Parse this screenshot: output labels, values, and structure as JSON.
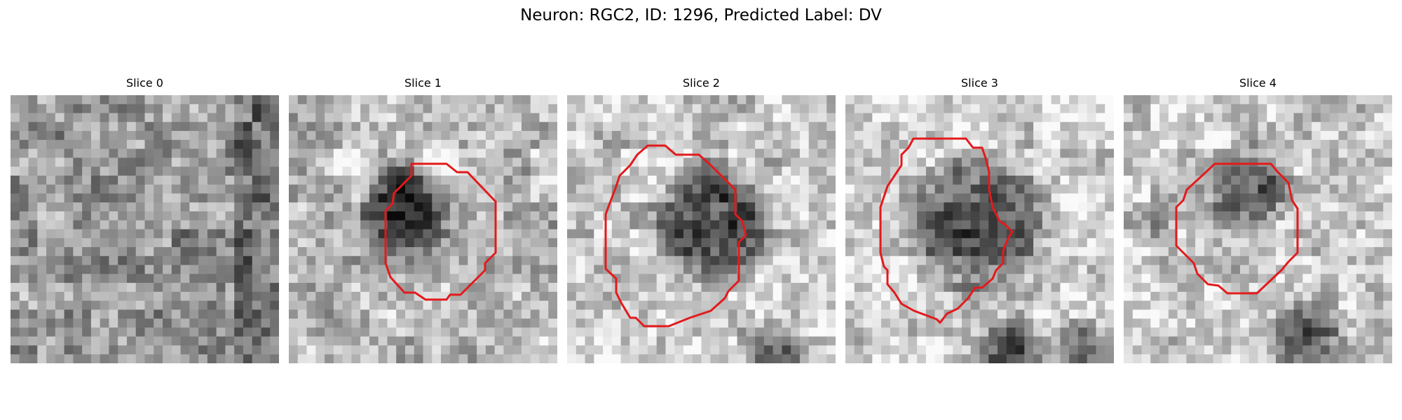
{
  "figure": {
    "title": "Neuron: RGC2, ID: 1296, Predicted Label: DV",
    "contour_color": "#e31a1c",
    "colormap": "gray"
  },
  "panels": [
    {
      "label": "Slice 0",
      "has_contour": false
    },
    {
      "label": "Slice 1",
      "has_contour": true
    },
    {
      "label": "Slice 2",
      "has_contour": true
    },
    {
      "label": "Slice 3",
      "has_contour": true
    },
    {
      "label": "Slice 4",
      "has_contour": true
    }
  ]
}
